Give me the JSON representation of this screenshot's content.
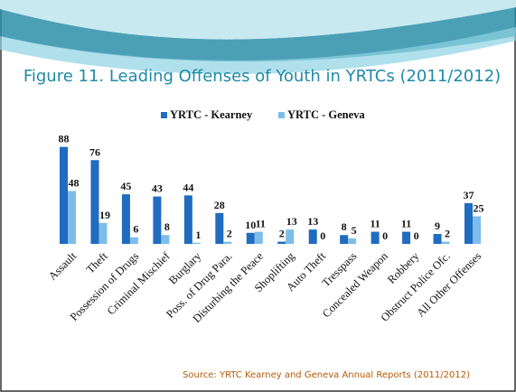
{
  "chart_data": {
    "type": "bar",
    "title": "Figure 11. Leading Offenses of Youth in YRTCs (2011/2012)",
    "categories": [
      "Assault",
      "Theft",
      "Possession of Drugs",
      "Criminal Mischief",
      "Burglary",
      "Poss. of Drug Para.",
      "Disturbing the Peace",
      "Shoplifting",
      "Auto Theft",
      "Tresspass",
      "Concealed Weapon",
      "Robbery",
      "Obstruct Police Ofc.",
      "All Other Offenses"
    ],
    "series": [
      {
        "name": "YRTC - Kearney",
        "color": "#1f6cc0",
        "values": [
          88,
          76,
          45,
          43,
          44,
          28,
          10,
          2,
          13,
          8,
          11,
          11,
          9,
          37
        ]
      },
      {
        "name": "YRTC - Geneva",
        "color": "#7dbde9",
        "values": [
          48,
          19,
          6,
          8,
          1,
          2,
          11,
          13,
          0,
          5,
          0,
          0,
          2,
          25
        ]
      }
    ],
    "legend": "top",
    "source": "Source:  YRTC Kearney and Geneva Annual Reports (2011/2012)"
  }
}
